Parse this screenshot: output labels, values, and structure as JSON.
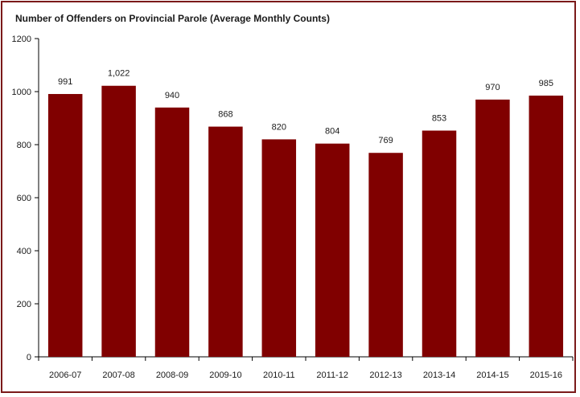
{
  "chart_data": {
    "type": "bar",
    "title": "Number of Offenders on Provincial Parole (Average Monthly Counts)",
    "xlabel": "",
    "ylabel": "",
    "categories": [
      "2006-07",
      "2007-08",
      "2008-09",
      "2009-10",
      "2010-11",
      "2011-12",
      "2012-13",
      "2013-14",
      "2014-15",
      "2015-16"
    ],
    "values": [
      991,
      1022,
      940,
      868,
      820,
      804,
      769,
      853,
      970,
      985
    ],
    "data_labels": [
      "991",
      "1,022",
      "940",
      "868",
      "820",
      "804",
      "769",
      "853",
      "970",
      "985"
    ],
    "ylim": [
      0,
      1200
    ],
    "yticks": [
      0,
      200,
      400,
      600,
      800,
      1000,
      1200
    ],
    "grid": false,
    "legend": "none",
    "bar_color": "#800000",
    "border_color": "#7b1a1a"
  }
}
